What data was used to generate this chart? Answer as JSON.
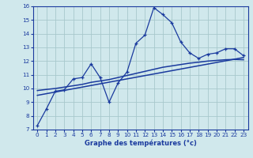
{
  "xlabel": "Graphe des températures (°c)",
  "bg_color": "#d0e8ec",
  "grid_color": "#a8c8cc",
  "line_color": "#1a3a9e",
  "xlim": [
    -0.5,
    23.5
  ],
  "ylim": [
    7,
    16
  ],
  "xticks": [
    0,
    1,
    2,
    3,
    4,
    5,
    6,
    7,
    8,
    9,
    10,
    11,
    12,
    13,
    14,
    15,
    16,
    17,
    18,
    19,
    20,
    21,
    22,
    23
  ],
  "yticks": [
    7,
    8,
    9,
    10,
    11,
    12,
    13,
    14,
    15,
    16
  ],
  "main_x": [
    0,
    1,
    2,
    3,
    4,
    5,
    6,
    7,
    8,
    9,
    10,
    11,
    12,
    13,
    14,
    15,
    16,
    17,
    18,
    19,
    20,
    21,
    22,
    23
  ],
  "main_y": [
    7.3,
    8.5,
    9.8,
    9.9,
    10.7,
    10.8,
    11.8,
    10.8,
    9.0,
    10.4,
    11.2,
    13.3,
    13.9,
    15.9,
    15.4,
    14.8,
    13.4,
    12.6,
    12.2,
    12.5,
    12.6,
    12.9,
    12.9,
    12.4
  ],
  "smooth1_x": [
    0,
    1,
    2,
    3,
    4,
    5,
    6,
    7,
    8,
    9,
    10,
    11,
    12,
    13,
    14,
    15,
    16,
    17,
    18,
    19,
    20,
    21,
    22,
    23
  ],
  "smooth1_y": [
    9.85,
    9.93,
    10.0,
    10.1,
    10.2,
    10.3,
    10.45,
    10.55,
    10.65,
    10.8,
    10.95,
    11.1,
    11.25,
    11.4,
    11.55,
    11.65,
    11.75,
    11.85,
    11.92,
    12.0,
    12.05,
    12.1,
    12.12,
    12.1
  ],
  "smooth2_x": [
    0,
    1,
    2,
    3,
    4,
    5,
    6,
    7,
    8,
    9,
    10,
    11,
    12,
    13,
    14,
    15,
    16,
    17,
    18,
    19,
    20,
    21,
    22,
    23
  ],
  "smooth2_y": [
    9.5,
    9.62,
    9.74,
    9.86,
    9.98,
    10.1,
    10.22,
    10.34,
    10.46,
    10.58,
    10.7,
    10.82,
    10.94,
    11.06,
    11.18,
    11.3,
    11.42,
    11.54,
    11.66,
    11.78,
    11.9,
    12.02,
    12.14,
    12.26
  ]
}
